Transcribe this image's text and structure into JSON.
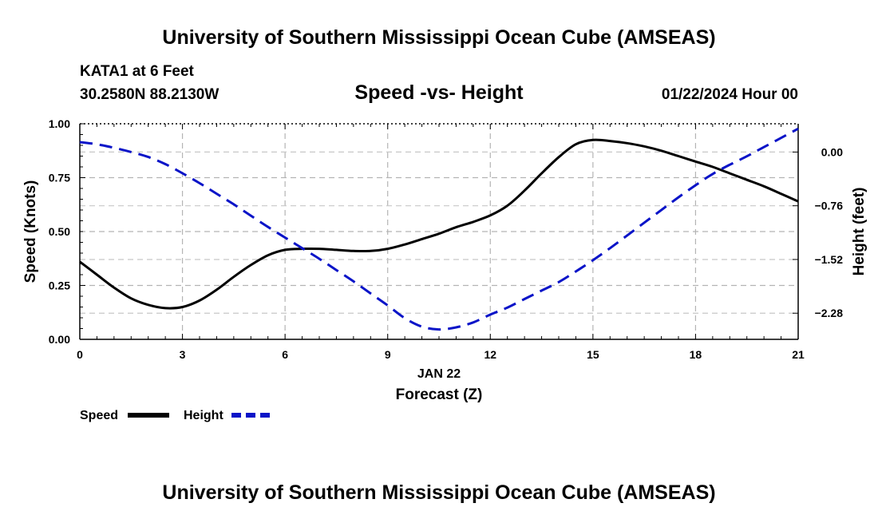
{
  "header": {
    "title": "University of Southern Mississippi Ocean Cube (AMSEAS)",
    "station": "KATA1 at 6 Feet",
    "coords": "30.2580N  88.2130W",
    "date": "01/22/2024 Hour 00",
    "footer_title": "University of Southern Mississippi Ocean Cube (AMSEAS)"
  },
  "chart_data": {
    "type": "line",
    "title": "Speed -vs- Height",
    "xlabel": "Forecast (Z)",
    "xsublabel": "JAN 22",
    "ylabel": "Speed (Knots)",
    "y2label": "Height (feet)",
    "xlim": [
      0,
      21
    ],
    "ylim": [
      0,
      1
    ],
    "y2lim": [
      -2.65,
      0.4
    ],
    "xticks": [
      "0",
      "3",
      "6",
      "9",
      "12",
      "15",
      "18",
      "21"
    ],
    "yticks": [
      "0.00",
      "0.25",
      "0.50",
      "0.75",
      "1.00"
    ],
    "y2ticks": [
      "0.00",
      "−0.76",
      "−1.52",
      "−2.28"
    ],
    "grid": true,
    "series": [
      {
        "name": "Speed",
        "axis": "left",
        "color": "#000000",
        "style": "solid",
        "x": [
          0,
          0.5,
          1,
          1.5,
          2,
          2.5,
          3,
          3.5,
          4,
          4.5,
          5,
          5.5,
          6,
          6.5,
          7,
          7.5,
          8,
          8.5,
          9,
          9.5,
          10,
          10.5,
          11,
          11.5,
          12,
          12.5,
          13,
          13.5,
          14,
          14.5,
          15,
          15.5,
          16,
          16.5,
          17,
          17.5,
          18,
          18.5,
          19,
          19.5,
          20,
          20.5,
          21
        ],
        "values": [
          0.36,
          0.3,
          0.24,
          0.19,
          0.16,
          0.145,
          0.15,
          0.18,
          0.23,
          0.29,
          0.345,
          0.39,
          0.415,
          0.42,
          0.42,
          0.415,
          0.41,
          0.41,
          0.42,
          0.44,
          0.465,
          0.49,
          0.52,
          0.545,
          0.575,
          0.62,
          0.69,
          0.77,
          0.845,
          0.905,
          0.925,
          0.92,
          0.91,
          0.895,
          0.875,
          0.85,
          0.825,
          0.8,
          0.77,
          0.74,
          0.71,
          0.675,
          0.64
        ]
      },
      {
        "name": "Height",
        "axis": "right",
        "color": "#0a14c8",
        "style": "dashed",
        "x": [
          0,
          0.5,
          1,
          1.5,
          2,
          2.5,
          3,
          3.5,
          4,
          4.5,
          5,
          5.5,
          6,
          6.5,
          7,
          7.5,
          8,
          8.5,
          9,
          9.5,
          10,
          10.5,
          11,
          11.5,
          12,
          12.5,
          13,
          13.5,
          14,
          14.5,
          15,
          15.5,
          16,
          16.5,
          17,
          17.5,
          18,
          18.5,
          19,
          19.5,
          20,
          20.5,
          21
        ],
        "values": [
          0.14,
          0.11,
          0.06,
          0.0,
          -0.07,
          -0.17,
          -0.3,
          -0.44,
          -0.59,
          -0.74,
          -0.9,
          -1.06,
          -1.21,
          -1.36,
          -1.51,
          -1.67,
          -1.83,
          -2.0,
          -2.17,
          -2.35,
          -2.47,
          -2.51,
          -2.48,
          -2.41,
          -2.3,
          -2.2,
          -2.08,
          -1.96,
          -1.84,
          -1.69,
          -1.53,
          -1.36,
          -1.18,
          -1.0,
          -0.82,
          -0.64,
          -0.47,
          -0.31,
          -0.18,
          -0.06,
          0.07,
          0.2,
          0.33
        ]
      }
    ],
    "legend": [
      {
        "label": "Speed",
        "color": "#000000",
        "style": "solid"
      },
      {
        "label": "Height",
        "color": "#0a14c8",
        "style": "dashed"
      }
    ]
  }
}
